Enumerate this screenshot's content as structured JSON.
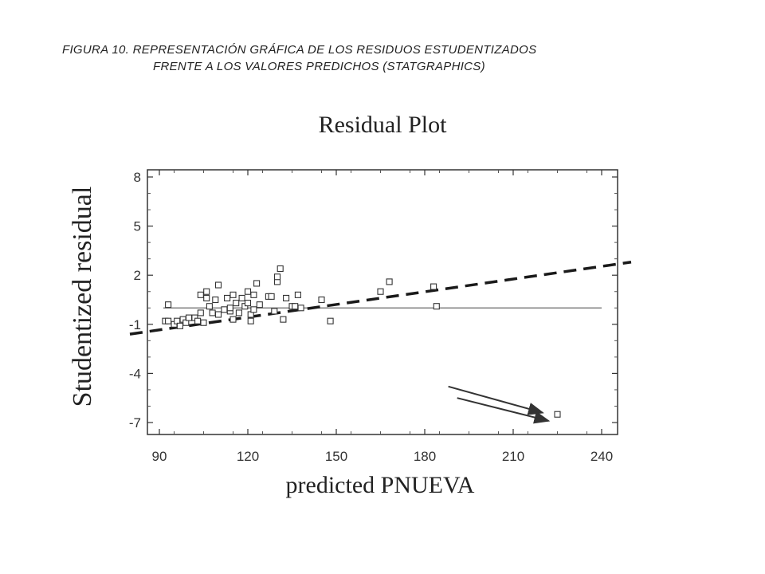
{
  "figure_caption": {
    "line1": "FIGURA 10. REPRESENTACIÓN GRÁFICA DE LOS RESIDUOS ESTUDENTIZADOS",
    "line2": "FRENTE A LOS VALORES PREDICHOS (STATGRAPHICS)"
  },
  "chart_data": {
    "type": "scatter",
    "title": "Residual Plot",
    "xlabel": "predicted PNUEVA",
    "ylabel": "Studentized residual",
    "xlim": [
      90,
      240
    ],
    "ylim": [
      -7.5,
      8.5
    ],
    "xticks": [
      90,
      120,
      150,
      180,
      210,
      240
    ],
    "yticks": [
      8,
      5,
      2,
      -1,
      -4,
      -7
    ],
    "grid": false,
    "reference_line_y": 0,
    "points": [
      [
        92,
        -0.8
      ],
      [
        93,
        -0.8
      ],
      [
        93,
        0.2
      ],
      [
        95,
        -1.0
      ],
      [
        96,
        -0.8
      ],
      [
        97,
        -1.1
      ],
      [
        98,
        -0.7
      ],
      [
        99,
        -0.9
      ],
      [
        100,
        -0.6
      ],
      [
        102,
        -0.6
      ],
      [
        103,
        -0.8
      ],
      [
        104,
        -0.3
      ],
      [
        104,
        0.8
      ],
      [
        105,
        -0.9
      ],
      [
        106,
        0.6
      ],
      [
        106,
        1.0
      ],
      [
        107,
        0.1
      ],
      [
        108,
        -0.3
      ],
      [
        109,
        0.5
      ],
      [
        110,
        -0.4
      ],
      [
        110,
        1.4
      ],
      [
        112,
        -0.1
      ],
      [
        113,
        0.6
      ],
      [
        114,
        -0.2
      ],
      [
        114,
        0.0
      ],
      [
        115,
        0.8
      ],
      [
        115,
        -0.7
      ],
      [
        116,
        0.3
      ],
      [
        117,
        -0.3
      ],
      [
        118,
        0.6
      ],
      [
        119,
        0.1
      ],
      [
        120,
        1.0
      ],
      [
        120,
        0.3
      ],
      [
        121,
        -0.4
      ],
      [
        121,
        -0.8
      ],
      [
        122,
        -0.1
      ],
      [
        122,
        0.8
      ],
      [
        123,
        1.5
      ],
      [
        124,
        0.2
      ],
      [
        127,
        0.7
      ],
      [
        128,
        0.7
      ],
      [
        129,
        -0.2
      ],
      [
        130,
        1.6
      ],
      [
        130,
        1.9
      ],
      [
        131,
        2.4
      ],
      [
        132,
        -0.7
      ],
      [
        133,
        0.6
      ],
      [
        135,
        0.1
      ],
      [
        136,
        0.1
      ],
      [
        137,
        0.8
      ],
      [
        138,
        0.0
      ],
      [
        145,
        0.5
      ],
      [
        148,
        -0.8
      ],
      [
        165,
        1.0
      ],
      [
        168,
        1.6
      ],
      [
        183,
        1.3
      ],
      [
        184,
        0.1
      ],
      [
        225,
        -6.5
      ]
    ],
    "annotations": [
      {
        "type": "trend-line",
        "style": "dashed",
        "from": [
          80,
          -1.6
        ],
        "to": [
          250,
          2.8
        ]
      },
      {
        "type": "arrow",
        "from": [
          188,
          -4.8
        ],
        "to": [
          220,
          -6.4
        ]
      },
      {
        "type": "arrow",
        "from": [
          191,
          -5.5
        ],
        "to": [
          222,
          -6.9
        ]
      }
    ]
  }
}
